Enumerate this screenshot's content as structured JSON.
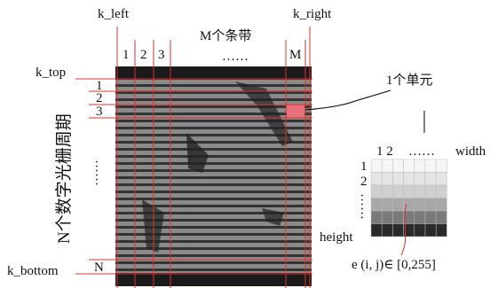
{
  "labels": {
    "k_left": "k_left",
    "k_right": "k_right",
    "k_top": "k_top",
    "k_bottom": "k_bottom"
  },
  "strips": {
    "title": "M个条带",
    "ellipsis": "……",
    "columns": [
      "1",
      "2",
      "3",
      "M"
    ]
  },
  "periods": {
    "title": "N个数字光栅周期",
    "ellipsis": "……",
    "rows": [
      "1",
      "2",
      "3",
      "N"
    ]
  },
  "cell": {
    "title": "1个单元",
    "columns": "1 2",
    "col_ellipsis": "……",
    "width": "width",
    "rows": [
      "1",
      "2"
    ],
    "row_ellipsis": "……",
    "height": "height",
    "formula": "e (i, j)∈ [0,255]"
  }
}
